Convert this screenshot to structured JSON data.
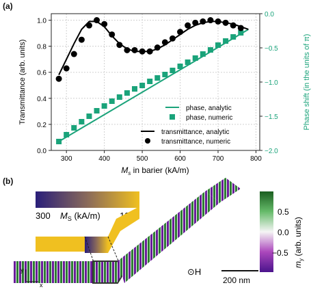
{
  "panels": {
    "a": "(a)",
    "b": "(b)"
  },
  "chart_data": {
    "type": "line",
    "xlabel_main": "M",
    "xlabel_sub": "s",
    "xlabel_rest": " in barier (kA/m)",
    "ylabel_left": "Transmittance (arb. units)",
    "ylabel_right": "Phase shift (in the units of π)",
    "xlim": [
      260,
      810
    ],
    "ylim_left": [
      0.0,
      1.05
    ],
    "ylim_right": [
      -2.0,
      0.0
    ],
    "x_ticks": [
      "300",
      "400",
      "500",
      "600",
      "700",
      "800"
    ],
    "x_tick_values": [
      300,
      400,
      500,
      600,
      700,
      800
    ],
    "y_left_ticks": [
      "0.0",
      "0.2",
      "0.4",
      "0.6",
      "0.8",
      "1.0"
    ],
    "y_left_tick_values": [
      0.0,
      0.2,
      0.4,
      0.6,
      0.8,
      1.0
    ],
    "y_right_ticks": [
      "−2.0",
      "−1.5",
      "−1.0",
      "−0.5",
      "0.0"
    ],
    "y_right_tick_values": [
      -2.0,
      -1.5,
      -1.0,
      -0.5,
      0.0
    ],
    "grid": true,
    "legend_placement": "bottom-right",
    "colors": {
      "phase": "#1aa37a",
      "transmittance": "#000000",
      "right_axis": "#1aa37a"
    },
    "series": [
      {
        "name": "phase, analytic",
        "axis": "right",
        "x": [
          280,
          780
        ],
        "y": [
          -1.87,
          -0.23
        ]
      },
      {
        "name": "phase, numeric",
        "axis": "right",
        "x": [
          280,
          300,
          320,
          340,
          360,
          380,
          400,
          420,
          440,
          460,
          480,
          500,
          520,
          540,
          560,
          580,
          600,
          620,
          640,
          660,
          680,
          700,
          720,
          740,
          760
        ],
        "y": [
          -1.87,
          -1.77,
          -1.67,
          -1.58,
          -1.5,
          -1.42,
          -1.35,
          -1.28,
          -1.22,
          -1.16,
          -1.1,
          -1.05,
          -0.99,
          -0.94,
          -0.89,
          -0.83,
          -0.77,
          -0.71,
          -0.65,
          -0.59,
          -0.53,
          -0.46,
          -0.4,
          -0.34,
          -0.28
        ]
      },
      {
        "name": "transmittance, analytic",
        "axis": "left",
        "x": [
          280,
          300,
          320,
          340,
          360,
          380,
          400,
          420,
          440,
          460,
          480,
          500,
          520,
          540,
          560,
          580,
          600,
          620,
          640,
          660,
          680,
          700,
          720,
          740,
          760,
          780
        ],
        "y": [
          0.58,
          0.7,
          0.82,
          0.93,
          0.99,
          0.99,
          0.95,
          0.88,
          0.82,
          0.78,
          0.76,
          0.76,
          0.76,
          0.78,
          0.81,
          0.85,
          0.89,
          0.93,
          0.96,
          0.98,
          0.99,
          0.99,
          0.98,
          0.97,
          0.95,
          0.93
        ]
      },
      {
        "name": "transmittance, numeric",
        "axis": "left",
        "x": [
          280,
          300,
          320,
          340,
          360,
          380,
          400,
          420,
          440,
          460,
          480,
          500,
          520,
          540,
          560,
          580,
          600,
          620,
          640,
          660,
          680,
          700,
          720,
          740,
          760
        ],
        "y": [
          0.55,
          0.63,
          0.74,
          0.85,
          0.96,
          1.0,
          0.97,
          0.89,
          0.81,
          0.77,
          0.77,
          0.76,
          0.76,
          0.79,
          0.83,
          0.86,
          0.91,
          0.96,
          0.98,
          0.99,
          1.0,
          0.99,
          0.98,
          0.96,
          0.94
        ]
      }
    ]
  },
  "panel_b": {
    "gradient_colors": [
      "#2a1f7a",
      "#8a6a5a",
      "#f0c020"
    ],
    "gradient_label_min": "300",
    "gradient_label_var": "M",
    "gradient_label_sub": "S",
    "gradient_label_unit": " (kA/m)",
    "gradient_label_max": "1200",
    "colorbar_ticks": [
      "0.5",
      "0.0",
      "−0.5"
    ],
    "colorbar_tick_values": [
      0.5,
      0.0,
      -0.5
    ],
    "colorbar_label_var": "m",
    "colorbar_label_sub": "y",
    "colorbar_label_unit": " (arb. units)",
    "colorbar_colors": [
      "#1b5e20",
      "#66bb6a",
      "#f5f5f5",
      "#ab47bc",
      "#4a148c"
    ],
    "field_label": "⊙H",
    "scale_label": "200 nm",
    "axis_y": "y",
    "axis_x": "x"
  }
}
